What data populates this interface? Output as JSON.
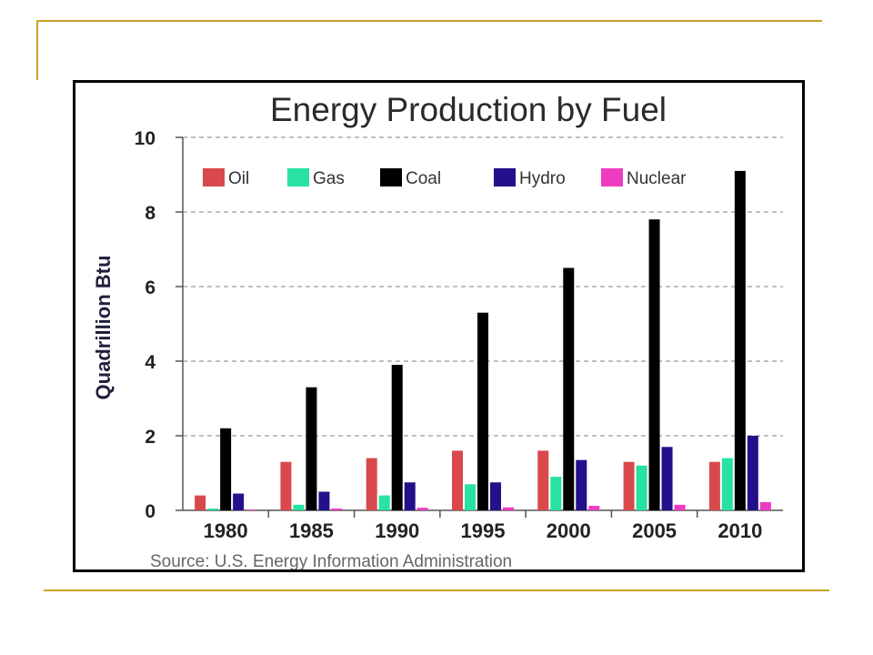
{
  "colors": {
    "accent_line": "#c9a227",
    "Oil": "#d9484c",
    "Gas": "#27e2a0",
    "Coal": "#000000",
    "Hydro": "#24108a",
    "Nuclear": "#ee3cc2",
    "grid": "#9a9a9a"
  },
  "chart_data": {
    "type": "bar",
    "title": "Energy Production by Fuel",
    "xlabel": "",
    "ylabel": "Quadrillion Btu",
    "source": "Source:  U.S. Energy Information Administration",
    "categories": [
      "1980",
      "1985",
      "1990",
      "1995",
      "2000",
      "2005",
      "2010"
    ],
    "ylim": [
      0,
      10
    ],
    "yticks": [
      "0",
      "2",
      "4",
      "6",
      "8",
      "10"
    ],
    "grid": true,
    "legend_position": "top",
    "series": [
      {
        "name": "Oil",
        "values": [
          0.4,
          1.3,
          1.4,
          1.6,
          1.6,
          1.3,
          1.3
        ]
      },
      {
        "name": "Gas",
        "values": [
          0.05,
          0.15,
          0.4,
          0.7,
          0.9,
          1.2,
          1.4
        ]
      },
      {
        "name": "Coal",
        "values": [
          2.2,
          3.3,
          3.9,
          5.3,
          6.5,
          7.8,
          9.1
        ]
      },
      {
        "name": "Hydro",
        "values": [
          0.45,
          0.5,
          0.75,
          0.75,
          1.35,
          1.7,
          2.0
        ]
      },
      {
        "name": "Nuclear",
        "values": [
          0.02,
          0.05,
          0.07,
          0.08,
          0.12,
          0.15,
          0.22
        ]
      }
    ]
  }
}
